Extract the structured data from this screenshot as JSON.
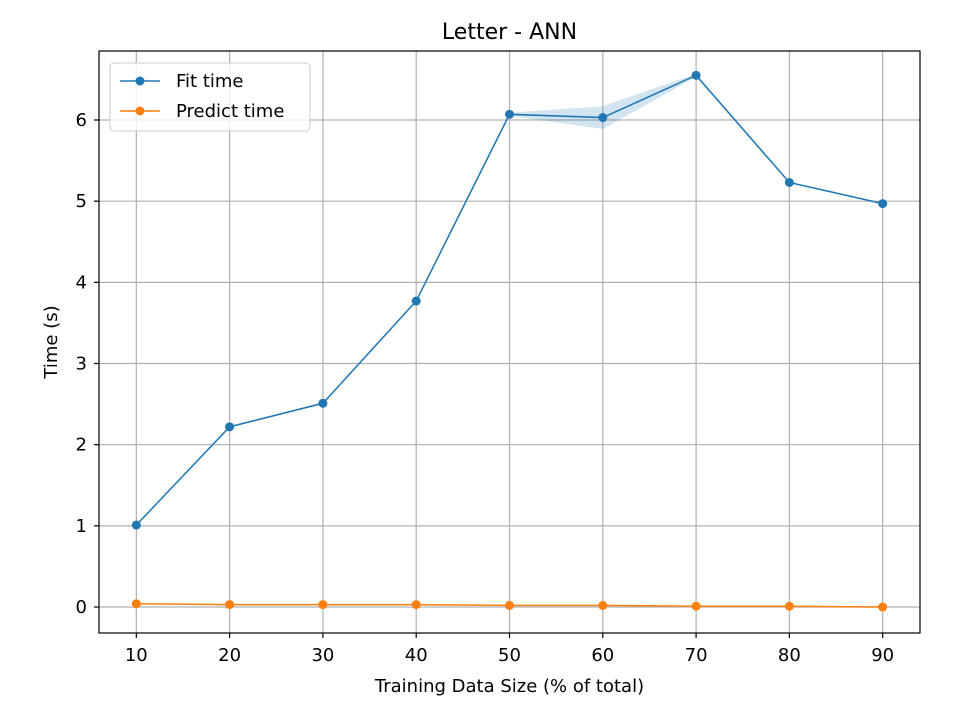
{
  "chart_data": {
    "type": "line",
    "title": "Letter - ANN",
    "xlabel": "Training Data Size (% of total)",
    "ylabel": "Time (s)",
    "x": [
      10,
      20,
      30,
      40,
      50,
      60,
      70,
      80,
      90
    ],
    "xlim": [
      6,
      94
    ],
    "ylim": [
      -0.32,
      6.85
    ],
    "xticks": [
      10,
      20,
      30,
      40,
      50,
      60,
      70,
      80,
      90
    ],
    "yticks": [
      0,
      1,
      2,
      3,
      4,
      5,
      6
    ],
    "grid": true,
    "legend_position": "upper-left",
    "series": [
      {
        "name": "Fit time",
        "color": "#1f77b4",
        "values": [
          1.01,
          2.22,
          2.51,
          3.77,
          6.07,
          6.03,
          6.55,
          5.23,
          4.97
        ],
        "band_low": [
          1.0,
          2.21,
          2.5,
          3.76,
          6.05,
          5.89,
          6.53,
          5.22,
          4.96
        ],
        "band_high": [
          1.02,
          2.23,
          2.52,
          3.78,
          6.09,
          6.17,
          6.57,
          5.24,
          4.98
        ]
      },
      {
        "name": "Predict time",
        "color": "#ff7f0e",
        "values": [
          0.04,
          0.03,
          0.03,
          0.03,
          0.02,
          0.02,
          0.01,
          0.01,
          0.0
        ],
        "band_low": [
          0.035,
          0.025,
          0.025,
          0.025,
          0.015,
          0.015,
          0.005,
          0.005,
          0.0
        ],
        "band_high": [
          0.045,
          0.035,
          0.035,
          0.035,
          0.025,
          0.025,
          0.015,
          0.015,
          0.005
        ]
      }
    ]
  }
}
